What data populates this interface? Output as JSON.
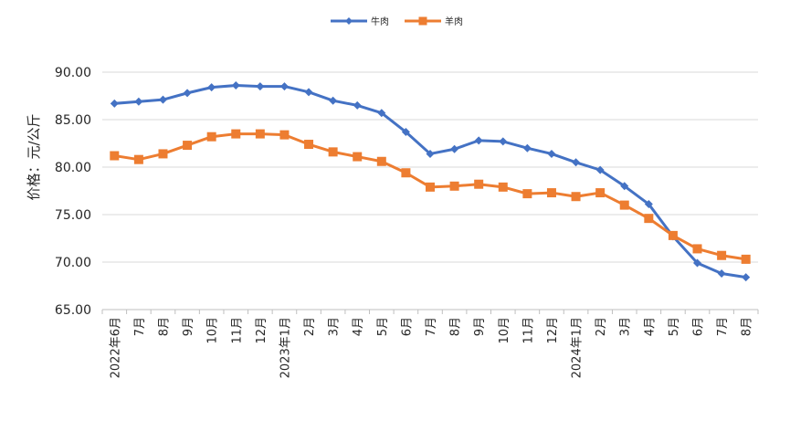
{
  "chart_data": {
    "type": "line",
    "title": "",
    "ylabel": "价格：元/公斤",
    "xlabel": "",
    "ylim": [
      65,
      90
    ],
    "yticks": [
      "65.00",
      "70.00",
      "75.00",
      "80.00",
      "85.00",
      "90.00"
    ],
    "grid": "horizontal",
    "legend_position": "top-center",
    "categories": [
      "2022年6月",
      "7月",
      "8月",
      "9月",
      "10月",
      "11月",
      "12月",
      "2023年1月",
      "2月",
      "3月",
      "4月",
      "5月",
      "6月",
      "7月",
      "8月",
      "9月",
      "10月",
      "11月",
      "12月",
      "2024年1月",
      "2月",
      "3月",
      "4月",
      "5月",
      "6月",
      "7月",
      "8月"
    ],
    "series": [
      {
        "name": "牛肉",
        "color": "#4472C4",
        "marker": "diamond",
        "values": [
          86.7,
          86.9,
          87.1,
          87.8,
          88.4,
          88.6,
          88.5,
          88.5,
          87.9,
          87.0,
          86.5,
          85.7,
          83.7,
          81.4,
          81.9,
          82.8,
          82.7,
          82.0,
          81.4,
          80.5,
          79.7,
          78.0,
          76.1,
          72.7,
          69.9,
          68.8,
          68.4
        ]
      },
      {
        "name": "羊肉",
        "color": "#ED7D31",
        "marker": "square",
        "values": [
          81.2,
          80.8,
          81.4,
          82.3,
          83.2,
          83.5,
          83.5,
          83.4,
          82.4,
          81.6,
          81.1,
          80.6,
          79.4,
          77.9,
          78.0,
          78.2,
          77.9,
          77.2,
          77.3,
          76.9,
          77.3,
          76.0,
          74.6,
          72.8,
          71.4,
          70.7,
          70.3
        ]
      }
    ]
  }
}
